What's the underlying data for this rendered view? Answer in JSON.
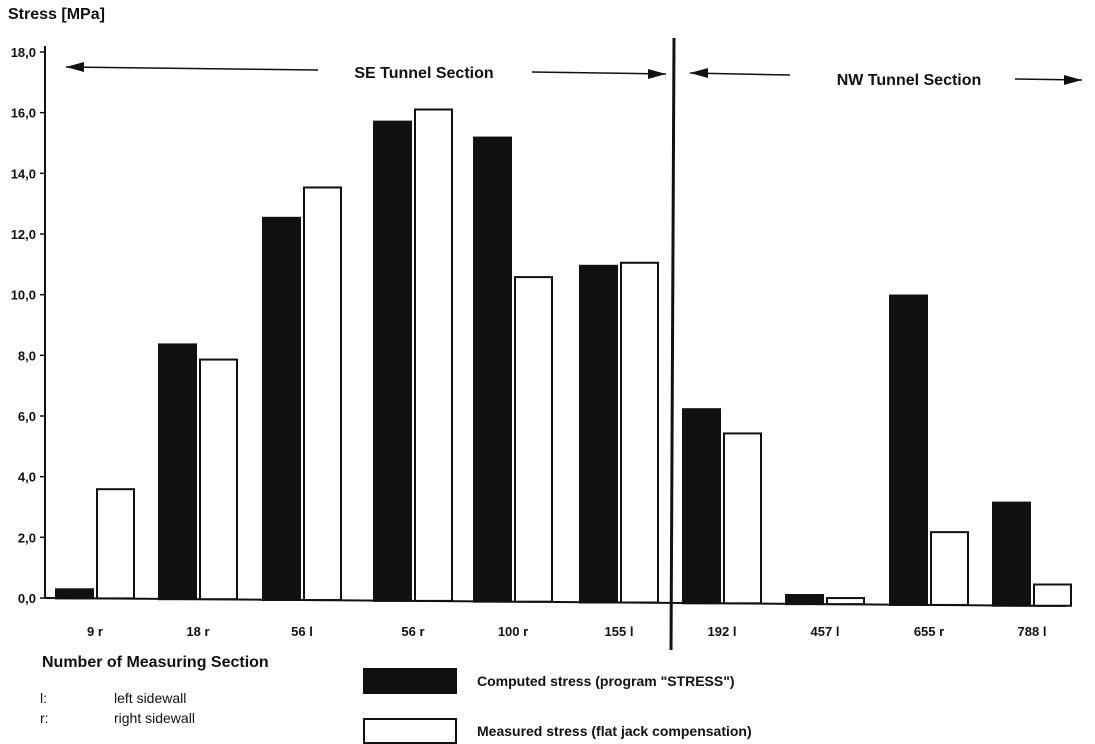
{
  "chart_data": {
    "type": "bar",
    "ylabel": "Stress [MPa]",
    "xlabel": "Number of Measuring Section",
    "ylim": [
      0,
      18
    ],
    "yticks": [
      "0,0",
      "2,0",
      "4,0",
      "6,0",
      "8,0",
      "10,0",
      "12,0",
      "14,0",
      "16,0",
      "18,0"
    ],
    "categories": [
      "9 r",
      "18 r",
      "56 l",
      "56 r",
      "100 r",
      "155 l",
      "192 l",
      "457 l",
      "655 r",
      "788 l"
    ],
    "series": [
      {
        "name": "Computed stress (program \"STRESS\")",
        "fill": "#111111",
        "values": [
          0.3,
          8.4,
          12.6,
          15.8,
          15.3,
          11.1,
          6.4,
          0.3,
          10.2,
          3.4
        ]
      },
      {
        "name": "Measured stress (flat jack compensation)",
        "fill": "#ffffff",
        "values": [
          3.6,
          7.9,
          13.6,
          16.2,
          10.7,
          11.2,
          5.6,
          0.2,
          2.4,
          0.7
        ]
      }
    ],
    "sections": [
      {
        "label": "SE Tunnel Section"
      },
      {
        "label": "NW Tunnel Section"
      }
    ],
    "grid": false,
    "legend_position": "bottom"
  },
  "footer": {
    "title": "Number of Measuring Section",
    "abbreviations": [
      {
        "key": "l:",
        "text": "left sidewall"
      },
      {
        "key": "r:",
        "text": "right sidewall"
      }
    ]
  }
}
